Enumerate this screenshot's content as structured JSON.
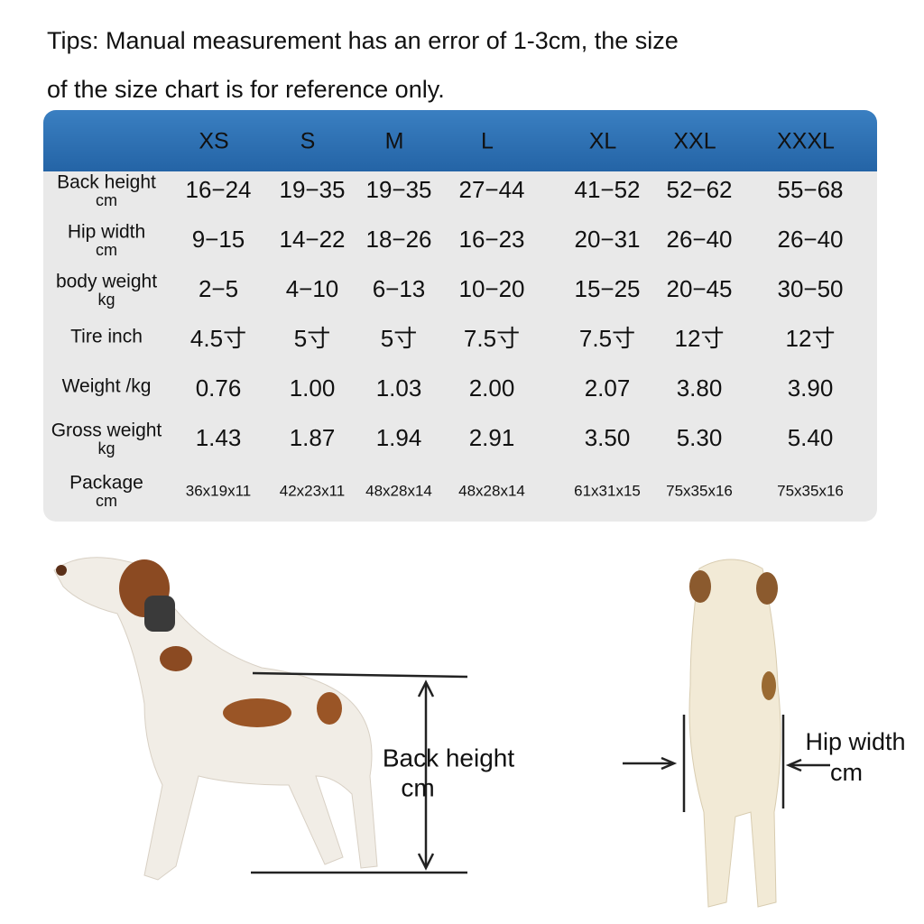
{
  "tips": [
    "Tips: Manual measurement has an error of 1-3cm, the size",
    "of the size chart is for reference only."
  ],
  "table": {
    "columns": [
      "XS",
      "S",
      "M",
      "L",
      "XL",
      "XXL",
      "XXXL"
    ],
    "rows": [
      {
        "label": [
          "Back height",
          "cm"
        ],
        "cells": [
          "16−24",
          "19−35",
          "19−35",
          "27−44",
          "41−52",
          "52−62",
          "55−68"
        ]
      },
      {
        "label": [
          "Hip width",
          "cm"
        ],
        "cells": [
          "9−15",
          "14−22",
          "18−26",
          "16−23",
          "20−31",
          "26−40",
          "26−40"
        ]
      },
      {
        "label": [
          "body weight",
          "kg"
        ],
        "cells": [
          "2−5",
          "4−10",
          "6−13",
          "10−20",
          "15−25",
          "20−45",
          "30−50"
        ]
      },
      {
        "label": [
          "Tire inch"
        ],
        "cells": [
          "4.5寸",
          "5寸",
          "5寸",
          "7.5寸",
          "7.5寸",
          "12寸",
          "12寸"
        ]
      },
      {
        "label": [
          "Weight /kg"
        ],
        "cells": [
          "0.76",
          "1.00",
          "1.03",
          "2.00",
          "2.07",
          "3.80",
          "3.90"
        ]
      },
      {
        "label": [
          "Gross weight",
          "kg"
        ],
        "cells": [
          "1.43",
          "1.87",
          "1.94",
          "2.91",
          "3.50",
          "5.30",
          "5.40"
        ]
      },
      {
        "label": [
          "Package",
          "cm"
        ],
        "cells": [
          "36x19x11",
          "42x23x11",
          "48x28x14",
          "48x28x14",
          "61x31x15",
          "75x35x16",
          "75x35x16"
        ]
      }
    ]
  },
  "annotations": {
    "back_height": [
      "Back height",
      "cm"
    ],
    "hip_width": [
      "Hip width",
      "cm"
    ]
  }
}
